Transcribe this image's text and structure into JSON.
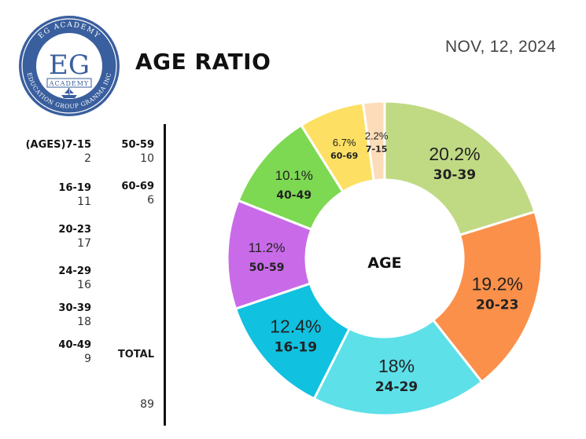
{
  "logo": {
    "ring_top": "EG ACADEMY",
    "ring_bottom": "EDUCATION GROUP GRANMA INC",
    "monogram": "EG",
    "banner": "ACADEMY",
    "colors": {
      "ring": "#3a5f9e",
      "inner": "#ffffff",
      "text": "#3a5f9e"
    }
  },
  "title": "AGE RATIO",
  "date": "NOV, 12, 2024",
  "stats": {
    "col1": [
      {
        "label": "(AGES)7-15",
        "value": "2"
      },
      {
        "label": "16-19",
        "value": "11"
      },
      {
        "label": "20-23",
        "value": "17"
      },
      {
        "label": "24-29",
        "value": "16"
      },
      {
        "label": "30-39",
        "value": "18"
      },
      {
        "label": "40-49",
        "value": "9"
      }
    ],
    "col2": [
      {
        "label": "50-59",
        "value": "10"
      },
      {
        "label": "60-69",
        "value": "6"
      }
    ],
    "total_label": "TOTAL",
    "total_value": "89"
  },
  "chart_data": {
    "type": "pie",
    "donut": true,
    "center_label": "AGE",
    "start": "top",
    "direction": "clockwise",
    "slices": [
      {
        "category": "30-39",
        "value": 20.2,
        "label": "20.2%",
        "color": "#c0da84"
      },
      {
        "category": "20-23",
        "value": 19.2,
        "label": "19.2%",
        "color": "#fb904a"
      },
      {
        "category": "24-29",
        "value": 18.0,
        "label": "18%",
        "color": "#5de0e8"
      },
      {
        "category": "16-19",
        "value": 12.4,
        "label": "12.4%",
        "color": "#10c1e0"
      },
      {
        "category": "50-59",
        "value": 11.2,
        "label": "11.2%",
        "color": "#c96be8"
      },
      {
        "category": "40-49",
        "value": 10.1,
        "label": "10.1%",
        "color": "#7dd852"
      },
      {
        "category": "60-69",
        "value": 6.7,
        "label": "6.7%",
        "color": "#fde063"
      },
      {
        "category": "7-15",
        "value": 2.2,
        "label": "2.2%",
        "color": "#fcdcb9"
      }
    ]
  }
}
